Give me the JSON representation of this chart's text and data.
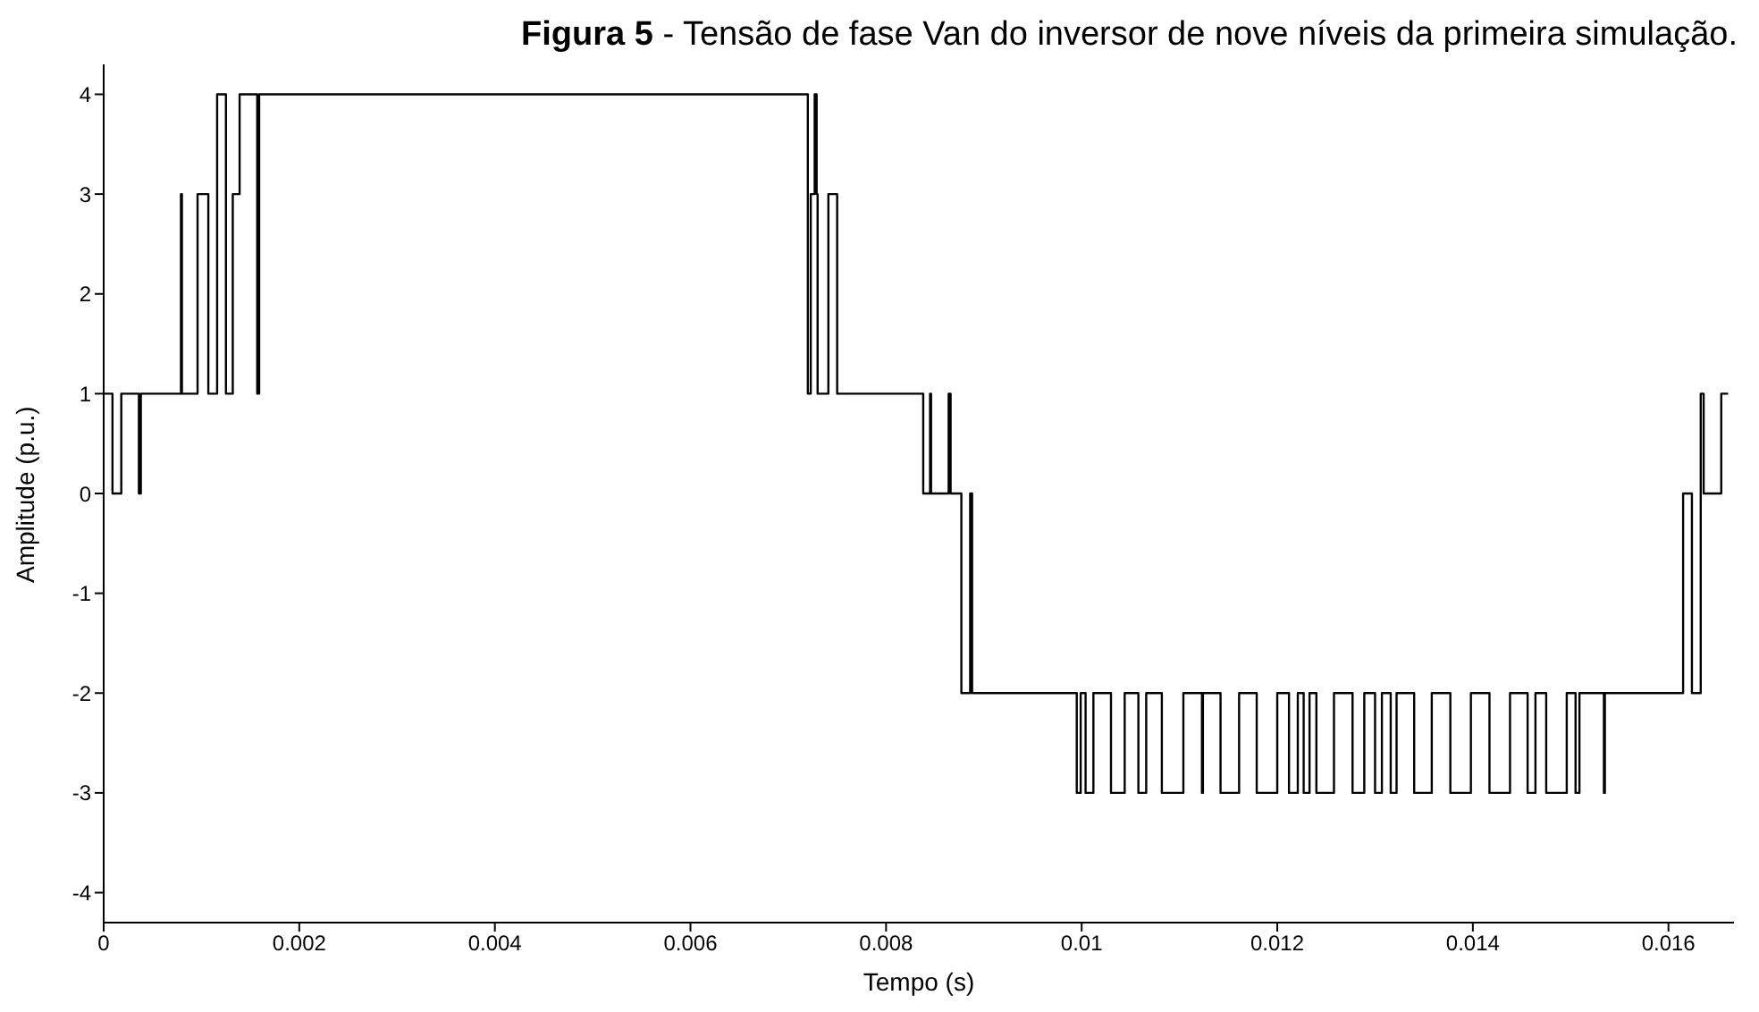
{
  "chart_data": {
    "type": "step",
    "title": "Figura 5 - Tensão de fase Van do inversor de nove níveis da primeira simulação.",
    "xlabel": "Tempo (s)",
    "ylabel": "Amplitude (p.u.)",
    "x": [
      0,
      9e-05,
      0.00018,
      0.00036,
      0.00038,
      0.00079,
      0.0008,
      0.00096,
      0.00107,
      0.00116,
      0.00125,
      0.00132,
      0.00139,
      0.00157,
      0.00159,
      0.0072,
      0.00723,
      0.00727,
      0.00729,
      0.0073,
      0.00741,
      0.0075,
      0.00838,
      0.00845,
      0.00846,
      0.00864,
      0.00866,
      0.00877,
      0.00886,
      0.00888,
      0.00995,
      0.00999,
      0.01004,
      0.01012,
      0.0103,
      0.01044,
      0.01058,
      0.01066,
      0.01082,
      0.01104,
      0.01123,
      0.01124,
      0.01142,
      0.01161,
      0.01179,
      0.012,
      0.01212,
      0.01221,
      0.01227,
      0.01233,
      0.0124,
      0.01258,
      0.01277,
      0.01289,
      0.013,
      0.01307,
      0.01316,
      0.01322,
      0.0134,
      0.01358,
      0.01377,
      0.01398,
      0.01417,
      0.01438,
      0.01456,
      0.01464,
      0.01475,
      0.01496,
      0.01505,
      0.01509,
      0.01534,
      0.01535,
      0.01615,
      0.01624,
      0.01633,
      0.01636,
      0.01654,
      0.01661
    ],
    "values": [
      1,
      0,
      1,
      0,
      1,
      3,
      1,
      3,
      1,
      4,
      1,
      3,
      4,
      1,
      4,
      1,
      3,
      4,
      3,
      1,
      3,
      1,
      0,
      1,
      0,
      1,
      0,
      -2,
      0,
      -2,
      -3,
      -2,
      -3,
      -2,
      -3,
      -2,
      -3,
      -2,
      -3,
      -2,
      -3,
      -2,
      -3,
      -2,
      -3,
      -2,
      -3,
      -2,
      -3,
      -2,
      -3,
      -2,
      -3,
      -2,
      -3,
      -2,
      -3,
      -2,
      -3,
      -2,
      -3,
      -2,
      -3,
      -2,
      -3,
      -2,
      -3,
      -2,
      -3,
      -2,
      -3,
      -2,
      0,
      -2,
      1,
      0,
      1,
      1
    ],
    "color": "#000000",
    "marker": "none",
    "line_style": "solid",
    "grid": false,
    "legend": false,
    "xlim": [
      0,
      0.01667
    ],
    "xticks": [
      0,
      0.002,
      0.004,
      0.006,
      0.008,
      0.01,
      0.012,
      0.014,
      0.016
    ],
    "ylim": [
      -4.3,
      4.3
    ],
    "yticks": [
      -4,
      -3,
      -2,
      -1,
      0,
      1,
      2,
      3,
      4
    ]
  }
}
